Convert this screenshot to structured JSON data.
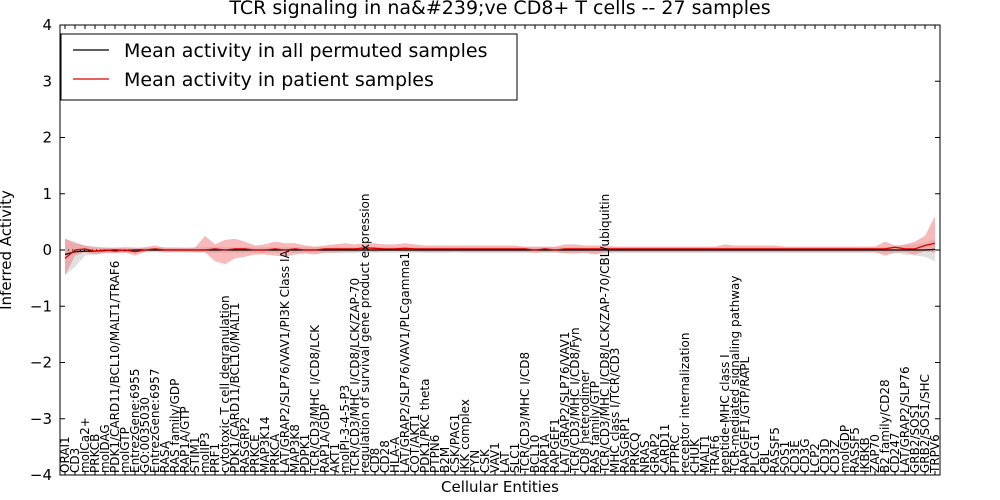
{
  "chart_data": {
    "type": "line",
    "title": "TCR signaling in na&#239;ve CD8+ T cells -- 27 samples",
    "xlabel": "Cellular Entities",
    "ylabel": "Inferred Activity",
    "ylim": [
      -4,
      4
    ],
    "yticks": [
      -4,
      -3,
      -2,
      -1,
      0,
      1,
      2,
      3,
      4
    ],
    "ytick_labels": [
      "−4",
      "−3",
      "−2",
      "−1",
      "0",
      "1",
      "2",
      "3",
      "4"
    ],
    "grid": false,
    "legend_position": "top-left",
    "categories": [
      "ORAI1",
      "CD3",
      "molCa2+",
      "PRKCB",
      "molDAG",
      "PDK1/CARD11/BCL10/MALT1/TRAF6",
      "molGTP",
      "EntrezGene:6955",
      "GO:0035030",
      "EntrezGene:6957",
      "RASA",
      "RAS family/GDP",
      "RAP1A/GTP",
      "STIM1",
      "molIP3",
      "PRF1",
      "cytotoxic T cell degranulation",
      "PDK1/CARD11/BCL10/MALT1",
      "RASGRP2",
      "PRKCE",
      "MAP3K14",
      "PRKCA",
      "LAT/GRAP2/SLP76/VAV1/PI3K Class IA",
      "MAP3K8",
      "PDPK1",
      "TCR/CD3/MHC I/CD8/LCK",
      "RAP1A/GDP",
      "AKT1",
      "molPI-3-4-5-P3",
      "TCR/CD3/MHC I/CD8/LCK/ZAP-70",
      "regulation of survival gene product expression",
      "CD8",
      "CD28",
      "HLA-A",
      "LAT/GRAP2/SLP76/VAV1/PLCgamma1",
      "COT/AKT1",
      "PDK1/PKC theta",
      "PTPN6",
      "B2M",
      "CSK/PAG1",
      "IKK complex",
      "FYN",
      "CSK",
      "VAV1",
      "LAT",
      "SLC1",
      "TCR/CD3/MHC I/CD8",
      "BCL10",
      "RAP1A",
      "RAPGEF1",
      "LAT/GRAP2/SLP76/VAV1",
      "TCR/CD3/MHC I/CD8/Fyn",
      "CD8 heterodimer",
      "RAS family/GTP",
      "TCR/CD3/MHC I/CD8/LCK/ZAP-70/CBL/ubiquitin",
      "MHC class I/TCR/CD3",
      "RASGRP1",
      "PRKCQ",
      "NRAS",
      "GRAP2",
      "CARD11",
      "PTPRC",
      "receptor internalization",
      "CHUK",
      "MALT1",
      "TRAF6",
      "peptide-MHC class I",
      "TCR-mediated signaling pathway",
      "RAPGEF1/GTP/RAPL",
      "PLCG1",
      "CBL",
      "RASSF5",
      "SOS1",
      "CD3E",
      "CD3G",
      "LCP2",
      "CD3D",
      "CD3Z",
      "molGDP",
      "RASSF5",
      "IKBKB",
      "ZAP70",
      "B2 family/CD28",
      "CD247",
      "LAT/GRAP2/SLP76",
      "GRB2/SOS1",
      "GRB2/SOS1/SHC",
      "TRPV6"
    ],
    "series": [
      {
        "name": "Mean activity in all permuted samples",
        "color": "#000000",
        "band_color": "#cccccc",
        "values": [
          -0.08,
          -0.03,
          -0.02,
          -0.02,
          -0.01,
          0.0,
          -0.01,
          0.0,
          0.0,
          0.0,
          0.0,
          0.0,
          0.0,
          0.0,
          0.0,
          0.0,
          0.0,
          0.0,
          0.0,
          0.0,
          0.0,
          0.0,
          0.0,
          0.0,
          0.0,
          0.0,
          0.0,
          0.0,
          0.0,
          0.0,
          0.0,
          0.0,
          0.0,
          0.0,
          0.0,
          0.0,
          0.0,
          0.0,
          0.0,
          0.0,
          0.0,
          0.0,
          0.0,
          0.0,
          0.0,
          0.0,
          0.0,
          0.0,
          0.0,
          0.0,
          0.0,
          0.0,
          0.0,
          0.0,
          0.0,
          0.0,
          0.0,
          0.0,
          0.0,
          0.0,
          0.0,
          0.0,
          0.0,
          0.0,
          0.0,
          0.0,
          0.0,
          0.0,
          0.0,
          0.0,
          0.0,
          0.0,
          0.0,
          0.0,
          0.0,
          0.0,
          0.0,
          0.0,
          0.0,
          0.0,
          0.0,
          0.0,
          0.0,
          0.0,
          0.0,
          0.0,
          0.0,
          0.01
        ],
        "lower": [
          -0.45,
          -0.3,
          -0.1,
          -0.08,
          -0.06,
          -0.05,
          -0.06,
          -0.05,
          -0.04,
          -0.04,
          -0.05,
          -0.05,
          -0.04,
          -0.05,
          -0.05,
          -0.06,
          -0.05,
          -0.05,
          -0.05,
          -0.05,
          -0.05,
          -0.05,
          -0.05,
          -0.05,
          -0.05,
          -0.05,
          -0.05,
          -0.05,
          -0.05,
          -0.05,
          -0.05,
          -0.05,
          -0.05,
          -0.05,
          -0.05,
          -0.05,
          -0.05,
          -0.05,
          -0.05,
          -0.05,
          -0.05,
          -0.05,
          -0.05,
          -0.05,
          -0.05,
          -0.05,
          -0.05,
          -0.05,
          -0.05,
          -0.05,
          -0.05,
          -0.05,
          -0.05,
          -0.05,
          -0.05,
          -0.05,
          -0.05,
          -0.05,
          -0.05,
          -0.05,
          -0.05,
          -0.05,
          -0.05,
          -0.05,
          -0.05,
          -0.05,
          -0.05,
          -0.05,
          -0.05,
          -0.05,
          -0.05,
          -0.05,
          -0.05,
          -0.05,
          -0.05,
          -0.05,
          -0.05,
          -0.05,
          -0.05,
          -0.05,
          -0.05,
          -0.05,
          -0.05,
          -0.05,
          -0.08,
          -0.1,
          -0.12,
          -0.2
        ],
        "upper": [
          0.2,
          0.15,
          0.08,
          0.06,
          0.05,
          0.05,
          0.06,
          0.05,
          0.04,
          0.04,
          0.05,
          0.05,
          0.04,
          0.05,
          0.05,
          0.06,
          0.05,
          0.05,
          0.05,
          0.05,
          0.05,
          0.05,
          0.05,
          0.05,
          0.05,
          0.05,
          0.05,
          0.05,
          0.05,
          0.05,
          0.05,
          0.05,
          0.05,
          0.05,
          0.05,
          0.05,
          0.05,
          0.05,
          0.05,
          0.05,
          0.05,
          0.05,
          0.05,
          0.05,
          0.05,
          0.05,
          0.05,
          0.05,
          0.05,
          0.05,
          0.05,
          0.05,
          0.05,
          0.05,
          0.05,
          0.05,
          0.05,
          0.05,
          0.05,
          0.05,
          0.05,
          0.05,
          0.05,
          0.05,
          0.05,
          0.05,
          0.05,
          0.05,
          0.05,
          0.05,
          0.05,
          0.05,
          0.05,
          0.05,
          0.05,
          0.05,
          0.05,
          0.05,
          0.05,
          0.05,
          0.05,
          0.05,
          0.05,
          0.05,
          0.08,
          0.1,
          0.12,
          0.2
        ]
      },
      {
        "name": "Mean activity in patient samples",
        "color": "#dd0000",
        "band_color": "#f08080",
        "values": [
          -0.15,
          0.0,
          0.02,
          -0.02,
          0.0,
          -0.02,
          0.0,
          -0.03,
          0.0,
          0.02,
          0.0,
          0.0,
          0.0,
          0.0,
          0.0,
          0.02,
          0.0,
          0.02,
          0.02,
          0.0,
          0.0,
          0.02,
          0.0,
          0.02,
          0.0,
          0.0,
          0.02,
          0.02,
          0.02,
          0.02,
          0.04,
          0.03,
          0.02,
          0.02,
          0.03,
          0.02,
          0.02,
          0.02,
          0.02,
          0.02,
          0.02,
          0.02,
          0.02,
          0.02,
          0.02,
          0.02,
          0.02,
          0.0,
          0.02,
          0.0,
          0.02,
          0.02,
          0.02,
          0.02,
          0.02,
          0.02,
          0.02,
          0.02,
          0.02,
          0.02,
          0.02,
          0.02,
          0.02,
          0.02,
          0.02,
          0.02,
          0.02,
          0.02,
          0.02,
          0.02,
          0.02,
          0.02,
          0.02,
          0.02,
          0.02,
          0.02,
          0.02,
          0.02,
          0.02,
          0.02,
          0.02,
          0.02,
          0.02,
          0.05,
          0.02,
          0.02,
          0.08,
          0.12
        ],
        "lower": [
          -0.45,
          -0.1,
          -0.04,
          -0.08,
          -0.05,
          -0.06,
          -0.04,
          -0.1,
          -0.03,
          -0.02,
          -0.04,
          -0.03,
          -0.04,
          -0.04,
          -0.04,
          -0.2,
          -0.25,
          -0.15,
          -0.12,
          -0.08,
          -0.08,
          -0.1,
          -0.12,
          -0.08,
          -0.06,
          -0.08,
          -0.05,
          -0.05,
          -0.04,
          -0.04,
          -0.02,
          -0.03,
          -0.02,
          -0.02,
          -0.03,
          -0.03,
          -0.04,
          -0.04,
          -0.04,
          -0.03,
          -0.04,
          -0.04,
          -0.04,
          -0.04,
          -0.04,
          -0.04,
          -0.04,
          -0.05,
          -0.04,
          -0.04,
          -0.06,
          -0.06,
          -0.05,
          -0.08,
          -0.05,
          -0.04,
          -0.04,
          -0.04,
          -0.04,
          -0.04,
          -0.04,
          -0.04,
          -0.04,
          -0.04,
          -0.04,
          -0.04,
          -0.04,
          -0.04,
          -0.04,
          -0.04,
          -0.04,
          -0.04,
          -0.04,
          -0.04,
          -0.04,
          -0.04,
          -0.04,
          -0.04,
          -0.04,
          -0.04,
          -0.04,
          -0.04,
          -0.1,
          -0.05,
          -0.04,
          -0.08,
          -0.02,
          -0.05
        ],
        "upper": [
          0.2,
          0.12,
          0.08,
          0.05,
          0.04,
          0.03,
          0.04,
          0.03,
          0.05,
          0.08,
          0.04,
          0.04,
          0.04,
          0.04,
          0.25,
          0.1,
          0.18,
          0.2,
          0.15,
          0.08,
          0.1,
          0.15,
          0.12,
          0.12,
          0.08,
          0.06,
          0.08,
          0.1,
          0.12,
          0.1,
          0.12,
          0.12,
          0.1,
          0.1,
          0.12,
          0.1,
          0.08,
          0.08,
          0.08,
          0.08,
          0.08,
          0.08,
          0.08,
          0.08,
          0.08,
          0.08,
          0.06,
          0.06,
          0.06,
          0.06,
          0.1,
          0.1,
          0.08,
          0.08,
          0.08,
          0.06,
          0.06,
          0.06,
          0.06,
          0.06,
          0.06,
          0.06,
          0.06,
          0.06,
          0.06,
          0.06,
          0.1,
          0.08,
          0.08,
          0.08,
          0.08,
          0.08,
          0.06,
          0.06,
          0.06,
          0.06,
          0.06,
          0.06,
          0.06,
          0.06,
          0.06,
          0.06,
          0.15,
          0.08,
          0.1,
          0.15,
          0.25,
          0.6
        ]
      }
    ]
  }
}
